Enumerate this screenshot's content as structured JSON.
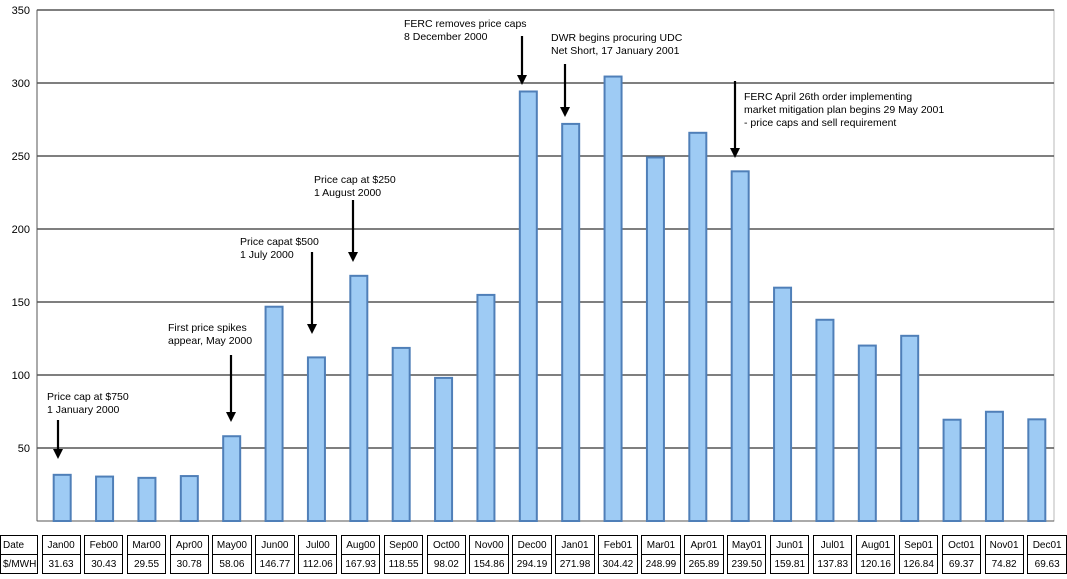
{
  "chart_data": {
    "type": "bar",
    "categories": [
      "Jan00",
      "Feb00",
      "Mar00",
      "Apr00",
      "May00",
      "Jun00",
      "Jul00",
      "Aug00",
      "Sep00",
      "Oct00",
      "Nov00",
      "Dec00",
      "Jan01",
      "Feb01",
      "Mar01",
      "Apr01",
      "May01",
      "Jun01",
      "Jul01",
      "Aug01",
      "Sep01",
      "Oct01",
      "Nov01",
      "Dec01"
    ],
    "values": [
      31.63,
      30.43,
      29.55,
      30.78,
      58.06,
      146.77,
      112.06,
      167.93,
      118.55,
      98.02,
      154.86,
      294.19,
      271.98,
      304.42,
      248.99,
      265.89,
      239.5,
      159.81,
      137.83,
      120.16,
      126.84,
      69.37,
      74.82,
      69.63
    ],
    "value_labels": [
      "31.63",
      "30.43",
      "29.55",
      "30.78",
      "58.06",
      "146.77",
      "112.06",
      "167.93",
      "118.55",
      "98.02",
      "154.86",
      "294.19",
      "271.98",
      "304.42",
      "248.99",
      "265.89",
      "239.50",
      "159.81",
      "137.83",
      "120.16",
      "126.84",
      "69.37",
      "74.82",
      "69.63"
    ],
    "ylim": [
      0,
      350
    ],
    "yticks": [
      50,
      100,
      150,
      200,
      250,
      300,
      350
    ],
    "grid": true,
    "bar_color": "#9ecbf4",
    "bar_border_color": "#4f7fb8",
    "annotations": [
      {
        "lines": [
          "Price cap at $750",
          "1 January 2000"
        ],
        "category": "Jan00"
      },
      {
        "lines": [
          "First price spikes",
          "appear, May 2000"
        ],
        "category": "May00"
      },
      {
        "lines": [
          "Price capat $500",
          "1 July 2000"
        ],
        "category": "Jul00"
      },
      {
        "lines": [
          "Price cap at $250",
          "1 August 2000"
        ],
        "category": "Aug00"
      },
      {
        "lines": [
          "FERC removes price caps",
          "8 December 2000"
        ],
        "category": "Dec00"
      },
      {
        "lines": [
          "DWR begins procuring UDC",
          "Net Short, 17 January 2001"
        ],
        "category": "Jan01"
      },
      {
        "lines": [
          "FERC April 26th order implementing",
          "market mitigation plan begins 29 May 2001",
          " - price caps and sell requirement"
        ],
        "category": "May01"
      }
    ]
  },
  "table": {
    "date_header": "Date",
    "value_header": "$/MWH"
  }
}
